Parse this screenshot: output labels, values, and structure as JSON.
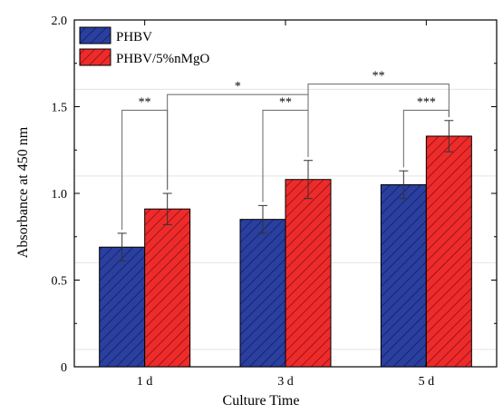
{
  "chart_data": {
    "type": "bar",
    "title": "",
    "xlabel": "Culture Time",
    "ylabel": "Absorbance at 450 nm",
    "categories": [
      "1 d",
      "3 d",
      "5 d"
    ],
    "ylim": [
      0,
      2.0
    ],
    "yticks": [
      "0",
      "0.5",
      "1.0",
      "1.5",
      "2.0"
    ],
    "series": [
      {
        "name": "PHBV",
        "values": [
          0.69,
          0.85,
          1.05
        ],
        "errors": [
          0.08,
          0.08,
          0.08
        ],
        "color": "#2a3f9e",
        "hatch_color": "#0d1a5e"
      },
      {
        "name": "PHBV/5%nMgO",
        "values": [
          0.91,
          1.08,
          1.33
        ],
        "errors": [
          0.09,
          0.11,
          0.09
        ],
        "color": "#ee2b2b",
        "hatch_color": "#7a0d0d"
      }
    ],
    "legend_position": "top-left",
    "grid": false,
    "significance": [
      {
        "label": "**",
        "from": [
          0,
          0
        ],
        "to": [
          0,
          1
        ],
        "y": 1.48
      },
      {
        "label": "**",
        "from": [
          1,
          0
        ],
        "to": [
          1,
          1
        ],
        "y": 1.48
      },
      {
        "label": "***",
        "from": [
          2,
          0
        ],
        "to": [
          2,
          1
        ],
        "y": 1.48
      },
      {
        "label": "*",
        "from": [
          0,
          1
        ],
        "to": [
          1,
          1
        ],
        "y": 1.57
      },
      {
        "label": "**",
        "from": [
          1,
          1
        ],
        "to": [
          2,
          1
        ],
        "y": 1.63
      }
    ]
  }
}
